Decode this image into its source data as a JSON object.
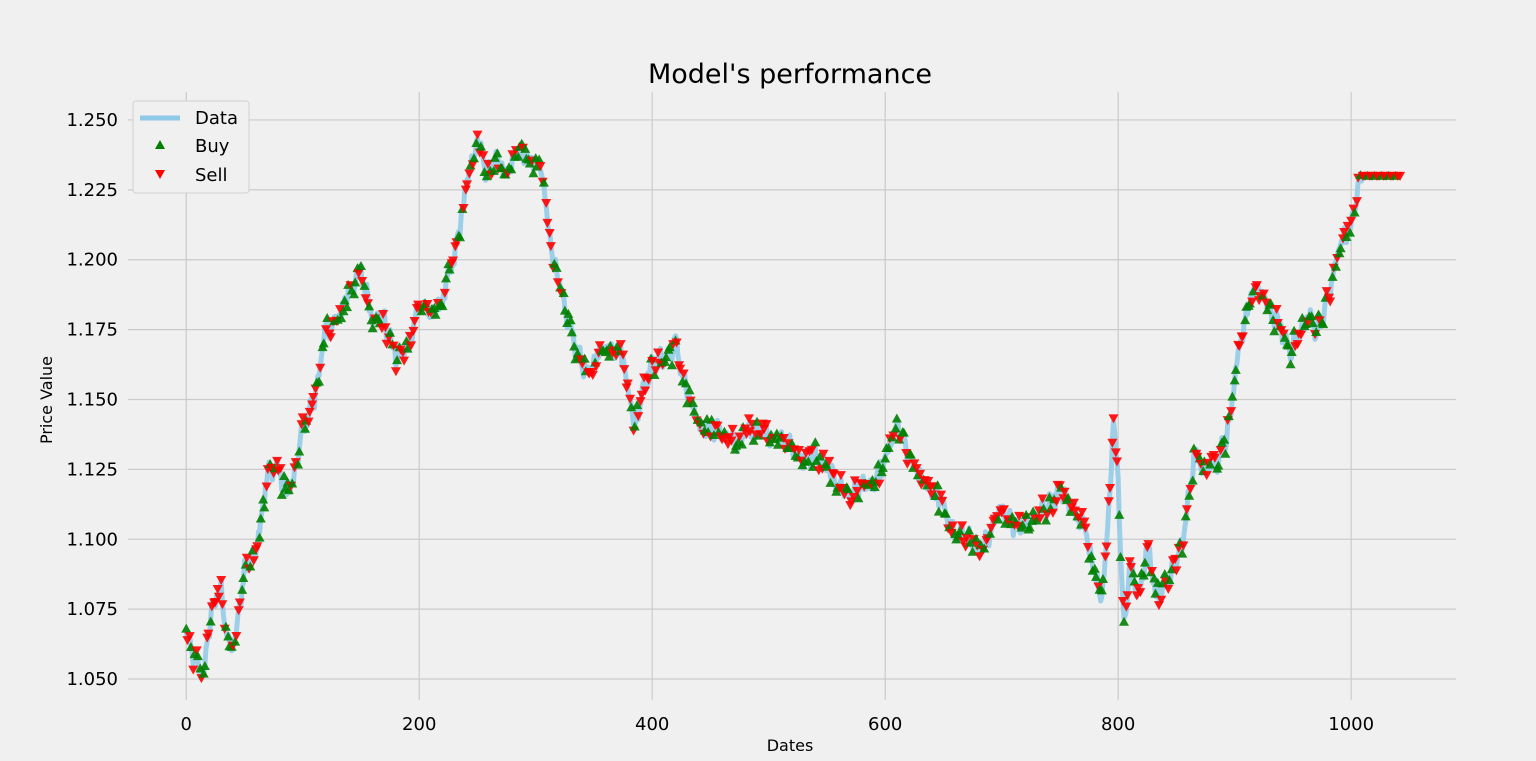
{
  "chart_data": {
    "type": "line",
    "title": "Model's performance",
    "xlabel": "Dates",
    "ylabel": "Price Value",
    "xlim": [
      -50,
      1090
    ],
    "ylim": [
      1.0425,
      1.26
    ],
    "xticks": [
      0,
      200,
      400,
      600,
      800,
      1000
    ],
    "yticks": [
      1.05,
      1.075,
      1.1,
      1.125,
      1.15,
      1.175,
      1.2,
      1.225,
      1.25
    ],
    "ytick_labels": [
      "1.050",
      "1.075",
      "1.100",
      "1.125",
      "1.150",
      "1.175",
      "1.200",
      "1.225",
      "1.250"
    ],
    "grid": true,
    "legend_position": "top-left",
    "legend": [
      {
        "label": "Data",
        "kind": "line",
        "color": "#8fc9e8"
      },
      {
        "label": "Buy",
        "kind": "marker-up",
        "color": "#008000"
      },
      {
        "label": "Sell",
        "kind": "marker-down",
        "color": "#ff0000"
      }
    ],
    "anchors": [
      [
        0,
        1.066
      ],
      [
        8,
        1.056
      ],
      [
        15,
        1.052
      ],
      [
        22,
        1.075
      ],
      [
        30,
        1.082
      ],
      [
        36,
        1.062
      ],
      [
        42,
        1.063
      ],
      [
        50,
        1.09
      ],
      [
        58,
        1.093
      ],
      [
        65,
        1.11
      ],
      [
        70,
        1.124
      ],
      [
        78,
        1.126
      ],
      [
        85,
        1.117
      ],
      [
        92,
        1.12
      ],
      [
        100,
        1.14
      ],
      [
        110,
        1.15
      ],
      [
        120,
        1.175
      ],
      [
        130,
        1.178
      ],
      [
        140,
        1.19
      ],
      [
        150,
        1.195
      ],
      [
        160,
        1.18
      ],
      [
        170,
        1.178
      ],
      [
        180,
        1.165
      ],
      [
        190,
        1.168
      ],
      [
        200,
        1.185
      ],
      [
        210,
        1.18
      ],
      [
        220,
        1.186
      ],
      [
        230,
        1.2
      ],
      [
        240,
        1.225
      ],
      [
        250,
        1.243
      ],
      [
        258,
        1.23
      ],
      [
        266,
        1.238
      ],
      [
        275,
        1.23
      ],
      [
        285,
        1.24
      ],
      [
        295,
        1.235
      ],
      [
        305,
        1.232
      ],
      [
        315,
        1.2
      ],
      [
        325,
        1.182
      ],
      [
        335,
        1.168
      ],
      [
        345,
        1.158
      ],
      [
        355,
        1.168
      ],
      [
        365,
        1.17
      ],
      [
        375,
        1.165
      ],
      [
        385,
        1.14
      ],
      [
        392,
        1.155
      ],
      [
        400,
        1.162
      ],
      [
        410,
        1.165
      ],
      [
        420,
        1.17
      ],
      [
        430,
        1.152
      ],
      [
        440,
        1.14
      ],
      [
        450,
        1.14
      ],
      [
        460,
        1.138
      ],
      [
        470,
        1.134
      ],
      [
        480,
        1.138
      ],
      [
        490,
        1.14
      ],
      [
        500,
        1.138
      ],
      [
        510,
        1.135
      ],
      [
        520,
        1.133
      ],
      [
        530,
        1.128
      ],
      [
        540,
        1.13
      ],
      [
        550,
        1.125
      ],
      [
        560,
        1.12
      ],
      [
        570,
        1.115
      ],
      [
        580,
        1.12
      ],
      [
        590,
        1.118
      ],
      [
        600,
        1.128
      ],
      [
        610,
        1.14
      ],
      [
        620,
        1.13
      ],
      [
        630,
        1.122
      ],
      [
        640,
        1.118
      ],
      [
        650,
        1.112
      ],
      [
        660,
        1.1
      ],
      [
        670,
        1.102
      ],
      [
        680,
        1.096
      ],
      [
        690,
        1.1
      ],
      [
        700,
        1.112
      ],
      [
        710,
        1.105
      ],
      [
        720,
        1.106
      ],
      [
        730,
        1.108
      ],
      [
        740,
        1.112
      ],
      [
        750,
        1.118
      ],
      [
        760,
        1.112
      ],
      [
        770,
        1.105
      ],
      [
        780,
        1.09
      ],
      [
        785,
        1.08
      ],
      [
        790,
        1.095
      ],
      [
        796,
        1.144
      ],
      [
        800,
        1.12
      ],
      [
        805,
        1.068
      ],
      [
        810,
        1.09
      ],
      [
        818,
        1.08
      ],
      [
        826,
        1.098
      ],
      [
        832,
        1.08
      ],
      [
        840,
        1.083
      ],
      [
        848,
        1.09
      ],
      [
        856,
        1.1
      ],
      [
        865,
        1.13
      ],
      [
        875,
        1.126
      ],
      [
        885,
        1.128
      ],
      [
        895,
        1.14
      ],
      [
        905,
        1.17
      ],
      [
        912,
        1.185
      ],
      [
        920,
        1.19
      ],
      [
        930,
        1.182
      ],
      [
        940,
        1.175
      ],
      [
        948,
        1.168
      ],
      [
        955,
        1.172
      ],
      [
        962,
        1.18
      ],
      [
        970,
        1.175
      ],
      [
        980,
        1.185
      ],
      [
        990,
        1.205
      ],
      [
        1000,
        1.212
      ],
      [
        1006,
        1.225
      ],
      [
        1010,
        1.23
      ]
    ],
    "buy_signal_count": 300,
    "sell_signal_count": 300,
    "buy_color": "#008000",
    "sell_color": "#ff0000",
    "line_color": "#8fc9e8"
  }
}
